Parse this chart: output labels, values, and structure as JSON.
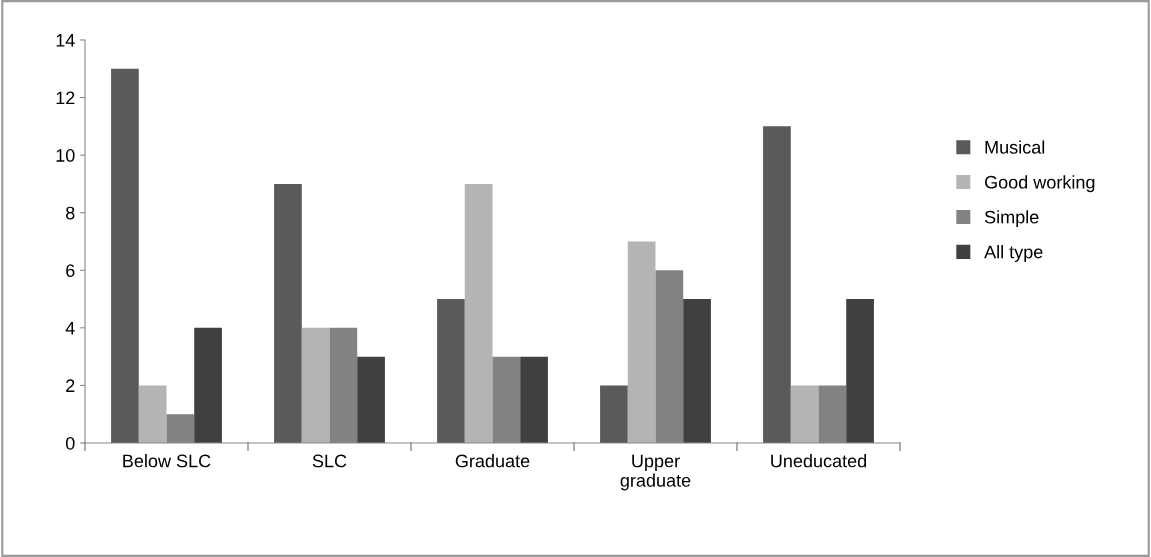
{
  "chart_data": {
    "type": "bar",
    "categories": [
      "Below SLC",
      "SLC",
      "Graduate",
      "Upper\ngraduate",
      "Uneducated"
    ],
    "series": [
      {
        "name": "Musical",
        "color": "#5a5a5a",
        "values": [
          13,
          9,
          5,
          2,
          11
        ]
      },
      {
        "name": "Good working",
        "color": "#b4b4b4",
        "values": [
          2,
          4,
          9,
          7,
          2
        ]
      },
      {
        "name": "Simple",
        "color": "#828282",
        "values": [
          1,
          4,
          3,
          6,
          2
        ]
      },
      {
        "name": "All type",
        "color": "#404040",
        "values": [
          4,
          3,
          3,
          5,
          5
        ]
      }
    ],
    "ylim": [
      0,
      14
    ],
    "yticks": [
      0,
      2,
      4,
      6,
      8,
      10,
      12,
      14
    ],
    "grid": false,
    "legend": "right"
  }
}
